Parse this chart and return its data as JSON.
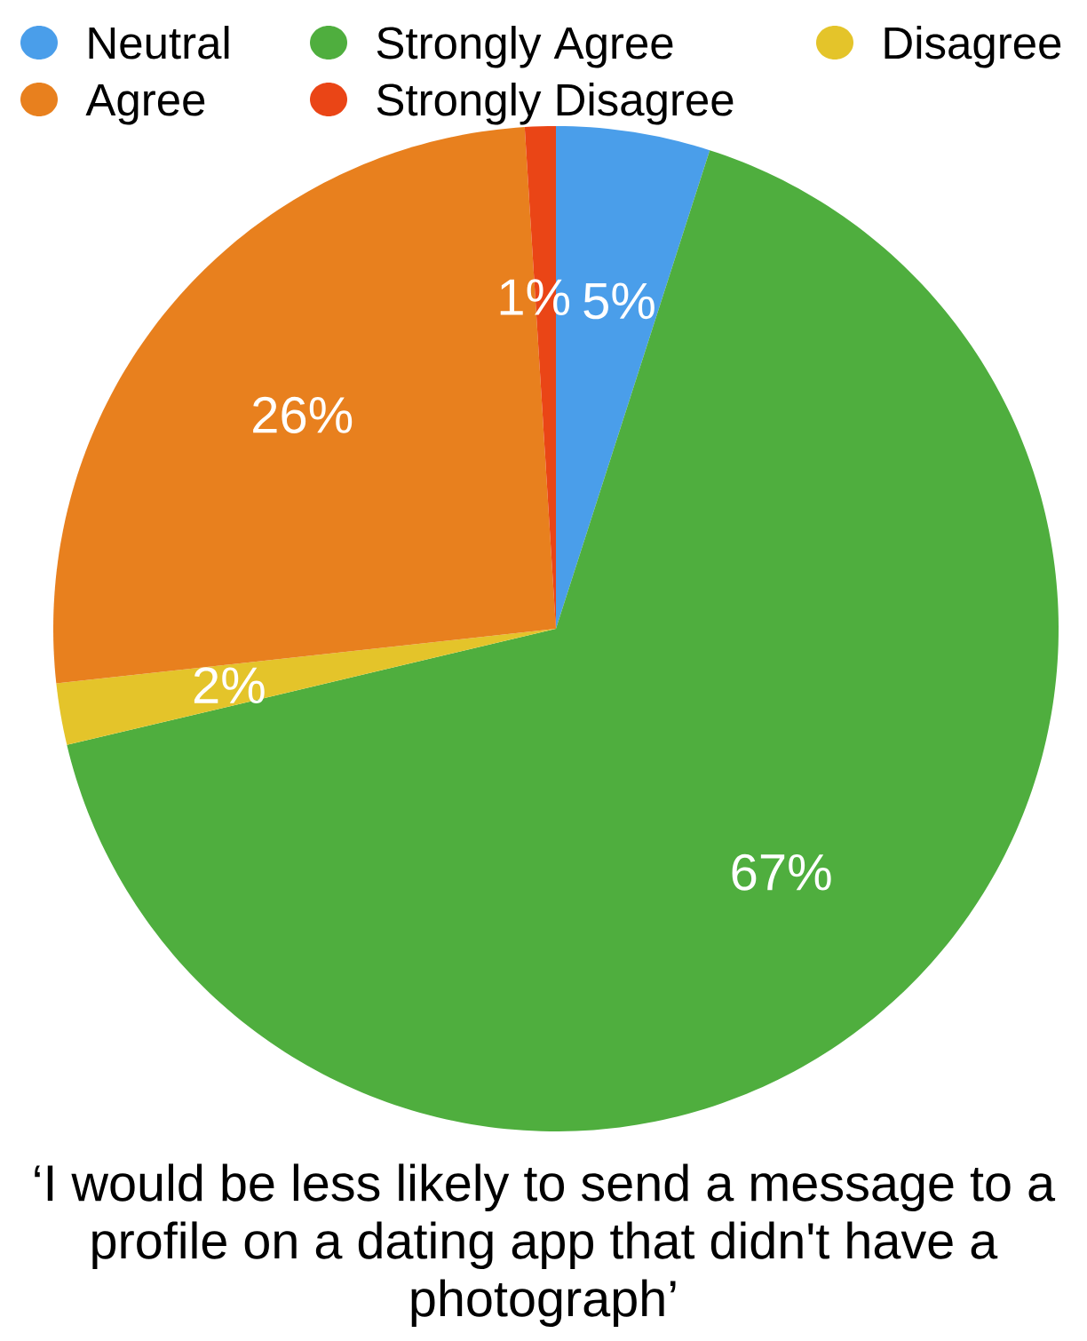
{
  "chart_data": {
    "type": "pie",
    "title": "‘I would be less likely to send a message to a profile on a dating app that didn't have a photograph’",
    "categories": [
      "Neutral",
      "Strongly Agree",
      "Disagree",
      "Agree",
      "Strongly Disagree"
    ],
    "values": [
      5,
      67,
      2,
      26,
      1
    ],
    "colors": [
      "#4a9eea",
      "#4fae3e",
      "#e4c42a",
      "#e8801e",
      "#ea4516"
    ],
    "value_labels": [
      "5%",
      "67%",
      "2%",
      "26%",
      "1%"
    ],
    "legend": "top"
  }
}
